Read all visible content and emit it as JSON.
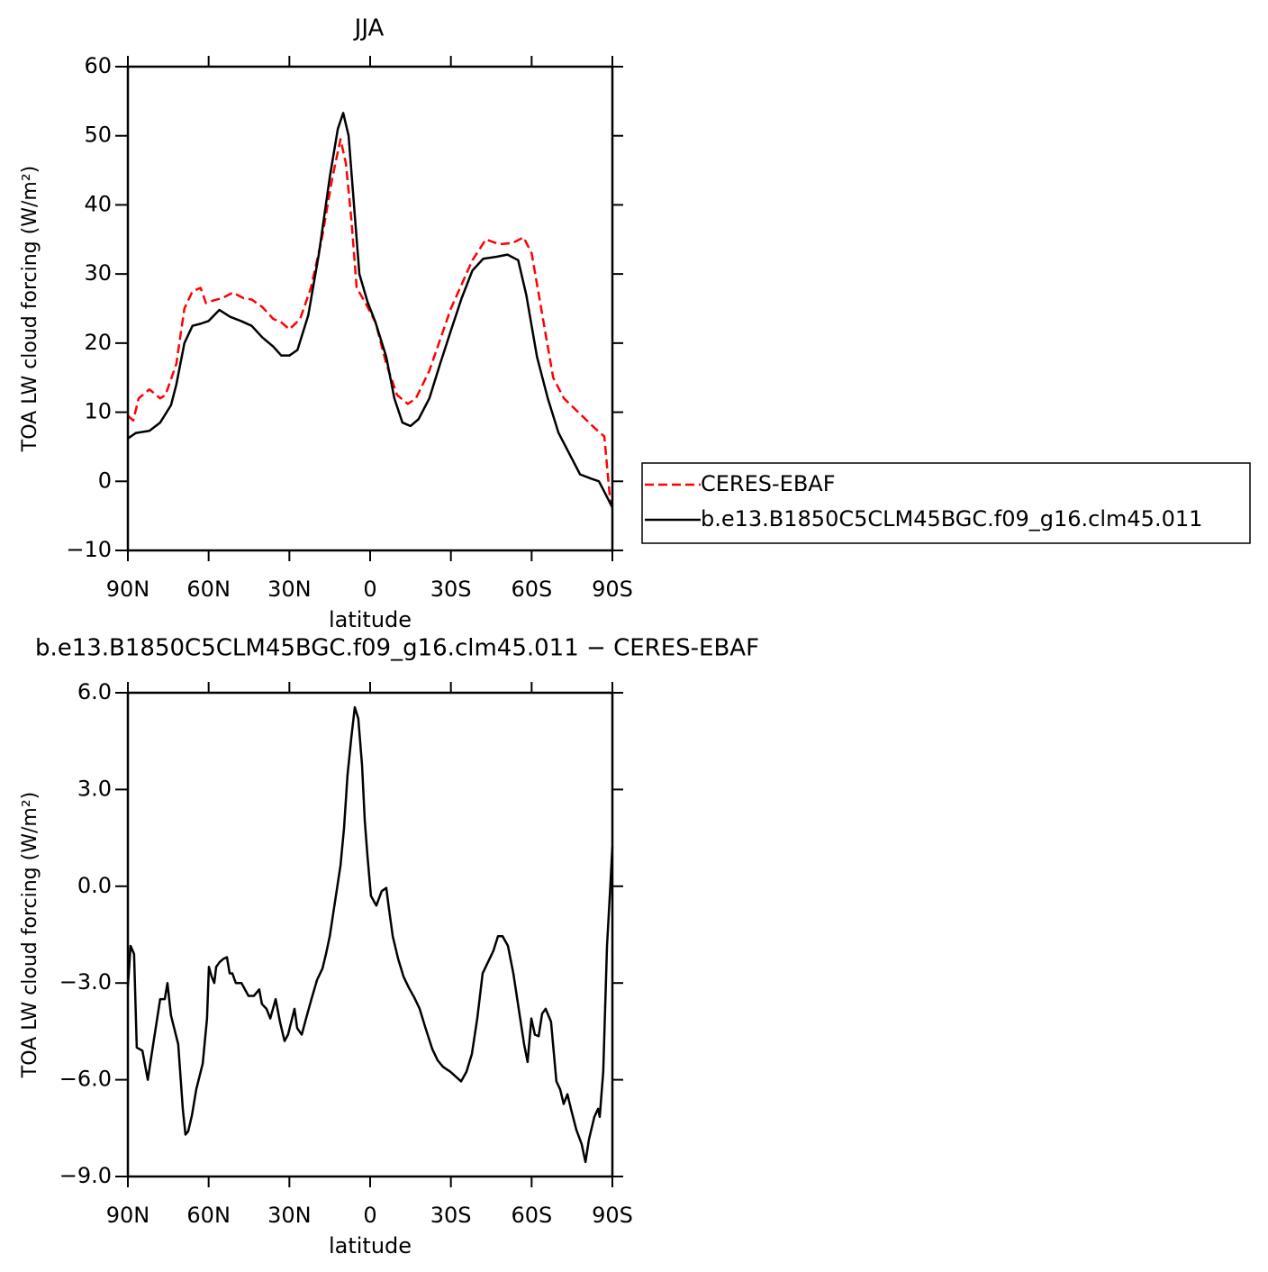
{
  "chart_data": [
    {
      "type": "line",
      "title": "JJA",
      "xlabel": "latitude",
      "ylabel": "TOA LW cloud forcing (W/m²)",
      "xlim": [
        90,
        -90
      ],
      "xticks": [
        {
          "value": 90,
          "label": "90N"
        },
        {
          "value": 60,
          "label": "60N"
        },
        {
          "value": 30,
          "label": "30N"
        },
        0,
        {
          "value": -30,
          "label": "30S"
        },
        {
          "value": -60,
          "label": "60S"
        },
        {
          "value": -90,
          "label": "90S"
        }
      ],
      "ylim": [
        -10,
        60
      ],
      "yticks": [
        {
          "value": -10,
          "label": "−10"
        },
        0,
        10,
        20,
        30,
        40,
        50,
        60
      ],
      "legend": "right",
      "series": [
        {
          "name": "CERES-EBAF",
          "color": "#ff0000",
          "dash": true,
          "x": [
            90,
            88,
            86,
            82,
            78,
            76,
            72,
            69,
            66,
            63,
            61,
            58,
            55,
            51,
            47,
            44,
            40,
            36,
            33,
            30,
            26,
            22,
            18,
            14,
            11,
            9,
            7,
            5,
            2,
            -2,
            -6,
            -10,
            -14,
            -17,
            -22,
            -30,
            -38,
            -43,
            -48,
            -53,
            -57,
            -60,
            -64,
            -68,
            -72,
            -76,
            -80,
            -84,
            -87,
            -89,
            -90
          ],
          "values": [
            9.5,
            8.8,
            12,
            13.3,
            12,
            12.5,
            17,
            25,
            27.5,
            28,
            25.8,
            26.2,
            26.5,
            27.3,
            26.5,
            26.3,
            25.2,
            23.5,
            23,
            22,
            23.5,
            28,
            35,
            44,
            49.5,
            46,
            38,
            28,
            26,
            23,
            17,
            12.5,
            11.2,
            12,
            16,
            25,
            32,
            35,
            34.3,
            34.5,
            35.3,
            33,
            24,
            15,
            12,
            10.5,
            9,
            7.5,
            6.5,
            -2,
            -3.5
          ]
        },
        {
          "name": "b.e13.B1850C5CLM45BGC.f09_g16.clm45.011",
          "color": "#000000",
          "dash": false,
          "x": [
            90,
            87,
            82,
            78,
            74,
            72,
            69,
            66,
            63,
            60,
            56,
            52,
            48,
            44,
            40,
            36,
            33,
            30,
            27,
            23,
            19,
            15,
            12,
            10,
            8,
            6,
            4,
            1,
            -2,
            -6,
            -9,
            -12,
            -15,
            -18,
            -22,
            -26,
            -30,
            -34,
            -38,
            -42,
            -47,
            -51,
            -55,
            -58,
            -62,
            -66,
            -70,
            -74,
            -78,
            -82,
            -85,
            -87,
            -90
          ],
          "values": [
            6.2,
            7,
            7.3,
            8.5,
            11,
            14,
            20,
            22.5,
            22.8,
            23.2,
            24.8,
            23.8,
            23.2,
            22.5,
            20.8,
            19.5,
            18.2,
            18.2,
            19,
            24,
            33,
            44,
            51,
            53.3,
            50,
            40,
            30,
            26,
            23,
            18,
            12,
            8.5,
            8,
            9,
            12,
            17,
            21.8,
            26.5,
            30.5,
            32.2,
            32.5,
            32.8,
            32,
            27,
            18,
            12,
            7,
            4,
            1,
            0.4,
            0,
            -1.5,
            -3.8
          ]
        }
      ]
    },
    {
      "type": "line",
      "title": "b.e13.B1850C5CLM45BGC.f09_g16.clm45.011 − CERES-EBAF",
      "xlabel": "latitude",
      "ylabel": "TOA LW cloud forcing (W/m²)",
      "xlim": [
        90,
        -90
      ],
      "xticks": [
        {
          "value": 90,
          "label": "90N"
        },
        {
          "value": 60,
          "label": "60N"
        },
        {
          "value": 30,
          "label": "30N"
        },
        0,
        {
          "value": -30,
          "label": "30S"
        },
        {
          "value": -60,
          "label": "60S"
        },
        {
          "value": -90,
          "label": "90S"
        }
      ],
      "ylim": [
        -9,
        6
      ],
      "yticks": [
        {
          "value": -9,
          "label": "−9.0"
        },
        {
          "value": -6,
          "label": "−6.0"
        },
        {
          "value": -3,
          "label": "−3.0"
        },
        {
          "value": 0,
          "label": "0.0"
        },
        {
          "value": 3,
          "label": "3.0"
        },
        {
          "value": 6,
          "label": "6.0"
        }
      ],
      "series": [
        {
          "color": "#000000",
          "dash": false,
          "x": [
            90,
            89,
            87.7,
            86.7,
            84.6,
            82.6,
            80.6,
            78,
            76.3,
            75.3,
            74,
            71.3,
            69.6,
            68.6,
            67.6,
            66.2,
            64.6,
            62.2,
            60.6,
            59.9,
            58.9,
            57.9,
            57.2,
            55.9,
            54.5,
            53.2,
            52.2,
            51.2,
            49.9,
            47.8,
            46.5,
            45.2,
            43.2,
            41.2,
            40.2,
            38.5,
            37.1,
            35.1,
            33.5,
            31.8,
            30.5,
            28.1,
            27.1,
            25.4,
            23.8,
            21.8,
            19.7,
            17.7,
            16.4,
            15,
            13,
            11,
            9.7,
            8.4,
            7,
            5.7,
            4.4,
            3,
            2,
            1,
            -0.3,
            -2.3,
            -4.3,
            -6,
            -7,
            -8.4,
            -10.4,
            -12.4,
            -14.4,
            -16.4,
            -18.4,
            -20.4,
            -23.1,
            -25.1,
            -27.1,
            -29.8,
            -31.8,
            -33.8,
            -35.8,
            -37.8,
            -39.8,
            -41.8,
            -43.8,
            -45.8,
            -47.5,
            -49.2,
            -51.2,
            -53.2,
            -55.2,
            -57.2,
            -58.5,
            -59.9,
            -61.2,
            -62.6,
            -63.9,
            -65.2,
            -67.2,
            -69.2,
            -70.6,
            -71.9,
            -73.3,
            -74.6,
            -76.6,
            -78.6,
            -80,
            -81.3,
            -83.3,
            -84.7,
            -85.3,
            -86.6,
            -88,
            -89.3,
            -90
          ],
          "values": [
            -3.1,
            -1.85,
            -2.1,
            -5,
            -5.1,
            -6,
            -4.9,
            -3.5,
            -3.5,
            -3,
            -4,
            -4.9,
            -6.9,
            -7.7,
            -7.6,
            -7.1,
            -6.3,
            -5.5,
            -4.1,
            -2.5,
            -2.8,
            -3,
            -2.5,
            -2.35,
            -2.25,
            -2.2,
            -2.7,
            -2.7,
            -3,
            -3,
            -3.2,
            -3.4,
            -3.4,
            -3.2,
            -3.65,
            -3.8,
            -4.1,
            -3.5,
            -4.2,
            -4.8,
            -4.6,
            -3.8,
            -4.4,
            -4.6,
            -4.1,
            -3.5,
            -2.9,
            -2.55,
            -2.1,
            -1.55,
            -0.45,
            0.65,
            1.8,
            3.45,
            4.6,
            5.55,
            5.2,
            3.75,
            2.05,
            0.95,
            -0.3,
            -0.6,
            -0.15,
            -0.05,
            -0.7,
            -1.55,
            -2.25,
            -2.8,
            -3.15,
            -3.45,
            -3.8,
            -4.35,
            -5.05,
            -5.4,
            -5.6,
            -5.75,
            -5.9,
            -6.05,
            -5.75,
            -5.2,
            -4.1,
            -2.7,
            -2.35,
            -2,
            -1.55,
            -1.55,
            -1.85,
            -2.7,
            -3.8,
            -4.9,
            -5.45,
            -4.1,
            -4.6,
            -4.65,
            -3.95,
            -3.8,
            -4.2,
            -6.05,
            -6.3,
            -6.75,
            -6.45,
            -6.9,
            -7.55,
            -8,
            -8.55,
            -7.85,
            -7.15,
            -6.9,
            -7.15,
            -5.75,
            -1.85,
            0.1,
            1.25
          ]
        }
      ]
    }
  ]
}
